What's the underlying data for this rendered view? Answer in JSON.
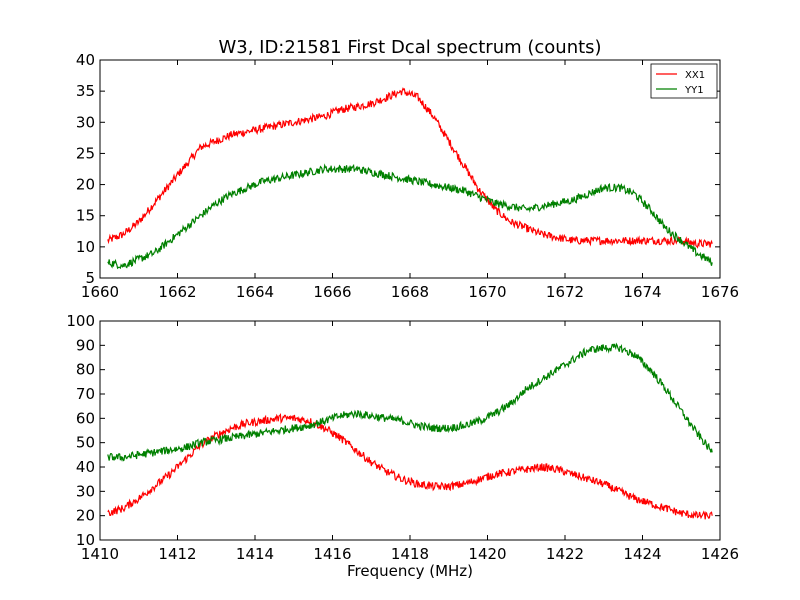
{
  "figure": {
    "title": "W3, ID:21581 First Dcal spectrum (counts)"
  },
  "chart_data": [
    {
      "type": "line",
      "title": "W3, ID:21581 First Dcal spectrum (counts)",
      "xlabel": "",
      "ylabel": "",
      "xlim": [
        1660,
        1676
      ],
      "ylim": [
        5,
        40
      ],
      "xticks": [
        "1660",
        "1662",
        "1664",
        "1666",
        "1668",
        "1670",
        "1672",
        "1674",
        "1676"
      ],
      "yticks": [
        "5",
        "10",
        "15",
        "20",
        "25",
        "30",
        "35",
        "40"
      ],
      "grid": false,
      "legend": "top-right",
      "series": [
        {
          "name": "XX1",
          "color": "#ff0000",
          "x": [
            1660.2,
            1660.6,
            1661.0,
            1661.4,
            1661.8,
            1662.2,
            1662.6,
            1663.0,
            1663.4,
            1663.8,
            1664.2,
            1664.6,
            1665.0,
            1665.4,
            1665.8,
            1666.2,
            1666.6,
            1667.0,
            1667.4,
            1667.8,
            1668.2,
            1668.6,
            1669.0,
            1669.4,
            1669.8,
            1670.2,
            1670.6,
            1671.0,
            1671.4,
            1671.8,
            1672.2,
            1672.6,
            1673.0,
            1673.4,
            1673.8,
            1674.2,
            1674.6,
            1675.0,
            1675.4,
            1675.8
          ],
          "values": [
            11,
            12,
            14,
            17,
            20,
            23,
            26,
            27,
            28,
            28.5,
            29,
            29.5,
            30,
            30.5,
            31,
            32,
            32.5,
            33,
            34,
            35,
            34,
            31,
            27,
            23,
            19,
            16,
            14,
            13,
            12,
            11.5,
            11,
            11,
            11,
            11,
            11,
            11,
            11,
            11,
            10.5,
            10.5
          ]
        },
        {
          "name": "YY1",
          "color": "#008000",
          "x": [
            1660.2,
            1660.6,
            1661.0,
            1661.4,
            1661.8,
            1662.2,
            1662.6,
            1663.0,
            1663.4,
            1663.8,
            1664.2,
            1664.6,
            1665.0,
            1665.4,
            1665.8,
            1666.2,
            1666.6,
            1667.0,
            1667.4,
            1667.8,
            1668.2,
            1668.6,
            1669.0,
            1669.4,
            1669.8,
            1670.2,
            1670.6,
            1671.0,
            1671.4,
            1671.8,
            1672.2,
            1672.6,
            1673.0,
            1673.4,
            1673.8,
            1674.2,
            1674.6,
            1675.0,
            1675.4,
            1675.8
          ],
          "values": [
            7.5,
            7,
            8,
            9,
            11,
            13,
            15,
            17,
            18.5,
            19.5,
            20.5,
            21,
            21.5,
            22,
            22.5,
            22.5,
            22.5,
            22,
            21.5,
            21,
            20.5,
            20,
            19.5,
            19,
            18,
            17,
            16.5,
            16,
            16.5,
            17,
            17.5,
            18.5,
            19.5,
            19.5,
            18.5,
            16,
            13,
            11,
            9,
            7.5
          ]
        }
      ]
    },
    {
      "type": "line",
      "title": "",
      "xlabel": "Frequency (MHz)",
      "ylabel": "",
      "xlim": [
        1410,
        1426
      ],
      "ylim": [
        10,
        100
      ],
      "xticks": [
        "1410",
        "1412",
        "1414",
        "1416",
        "1418",
        "1420",
        "1422",
        "1424",
        "1426"
      ],
      "yticks": [
        "10",
        "20",
        "30",
        "40",
        "50",
        "60",
        "70",
        "80",
        "90",
        "100"
      ],
      "grid": false,
      "legend": "none",
      "series": [
        {
          "color": "#ff0000",
          "x": [
            1410.2,
            1410.6,
            1411.0,
            1411.4,
            1411.8,
            1412.2,
            1412.6,
            1413.0,
            1413.4,
            1413.8,
            1414.2,
            1414.6,
            1415.0,
            1415.4,
            1415.8,
            1416.2,
            1416.6,
            1417.0,
            1417.4,
            1417.8,
            1418.2,
            1418.6,
            1419.0,
            1419.4,
            1419.8,
            1420.2,
            1420.6,
            1421.0,
            1421.4,
            1421.8,
            1422.2,
            1422.6,
            1423.0,
            1423.4,
            1423.8,
            1424.2,
            1424.6,
            1425.0,
            1425.4,
            1425.8
          ],
          "values": [
            21,
            23,
            27,
            32,
            37,
            43,
            49,
            53,
            56,
            58,
            59,
            60,
            60,
            59,
            56,
            52,
            47,
            42,
            38,
            35,
            33,
            32,
            32,
            33,
            35,
            37,
            38,
            39,
            40,
            39,
            37,
            35,
            33,
            30,
            27,
            25,
            23,
            21,
            20,
            20
          ]
        },
        {
          "color": "#008000",
          "x": [
            1410.2,
            1410.6,
            1411.0,
            1411.4,
            1411.8,
            1412.2,
            1412.6,
            1413.0,
            1413.4,
            1413.8,
            1414.2,
            1414.6,
            1415.0,
            1415.4,
            1415.8,
            1416.2,
            1416.6,
            1417.0,
            1417.4,
            1417.8,
            1418.2,
            1418.6,
            1419.0,
            1419.4,
            1419.8,
            1420.2,
            1420.6,
            1421.0,
            1421.4,
            1421.8,
            1422.2,
            1422.6,
            1423.0,
            1423.4,
            1423.8,
            1424.2,
            1424.6,
            1425.0,
            1425.4,
            1425.8
          ],
          "values": [
            44,
            44,
            45,
            46,
            47,
            48,
            50,
            51,
            52,
            53,
            54,
            55,
            56,
            57,
            59,
            61,
            62,
            61,
            60,
            59,
            57,
            56,
            56,
            57,
            59,
            62,
            66,
            72,
            76,
            80,
            84,
            88,
            89,
            89,
            86,
            80,
            72,
            63,
            54,
            46
          ]
        }
      ]
    }
  ]
}
